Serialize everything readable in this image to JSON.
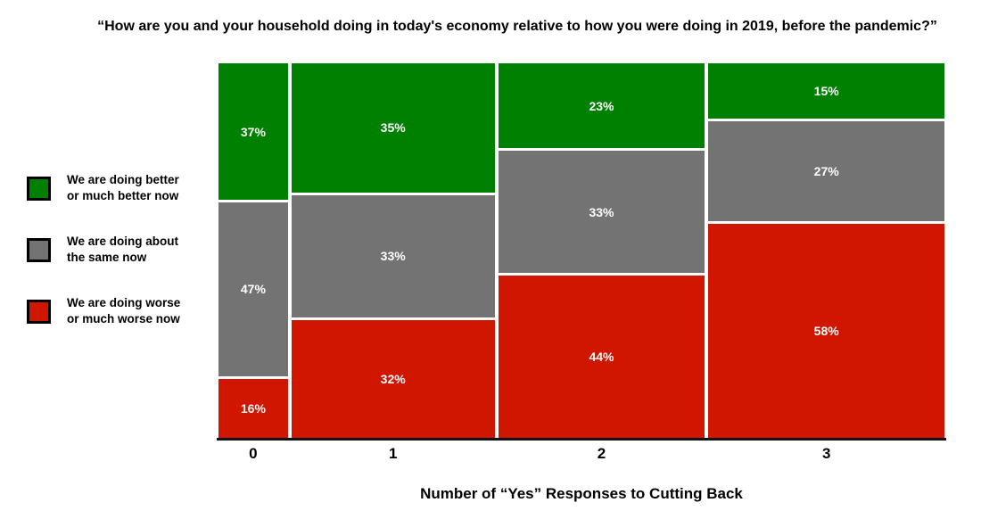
{
  "title": "“How are you and your household doing in today's economy relative to how you were doing in 2019, before the pandemic?”",
  "x_axis": {
    "label": "Number of “Yes” Responses to Cutting Back",
    "ticks": [
      "0",
      "1",
      "2",
      "3"
    ]
  },
  "legend": {
    "items": [
      {
        "line1": "We are doing better",
        "line2": "or much better now",
        "color": "#008000"
      },
      {
        "line1": "We are doing about",
        "line2": "the same now",
        "color": "#737373"
      },
      {
        "line1": "We are doing worse",
        "line2": "or much worse now",
        "color": "#D11600"
      }
    ]
  },
  "chart_data": {
    "type": "bar",
    "subtype": "mosaic-stacked-percent",
    "title": "“How are you and your household doing in today's economy relative to how you were doing in 2019, before the pandemic?”",
    "xlabel": "Number of “Yes” Responses to Cutting Back",
    "ylabel": "",
    "categories": [
      "0",
      "1",
      "2",
      "3"
    ],
    "column_width_fractions": [
      0.097,
      0.284,
      0.289,
      0.33
    ],
    "series": [
      {
        "name": "We are doing better or much better now",
        "color": "#008000",
        "values": [
          37,
          35,
          23,
          15
        ]
      },
      {
        "name": "We are doing about the same now",
        "color": "#737373",
        "values": [
          47,
          33,
          33,
          27
        ]
      },
      {
        "name": "We are doing worse or much worse now",
        "color": "#D11600",
        "values": [
          16,
          32,
          44,
          58
        ]
      }
    ],
    "value_label_format": "{value}%",
    "stack_order_top_to_bottom": [
      "better",
      "same",
      "worse"
    ],
    "ylim": [
      0,
      100
    ],
    "grid": false,
    "legend_position": "left"
  }
}
